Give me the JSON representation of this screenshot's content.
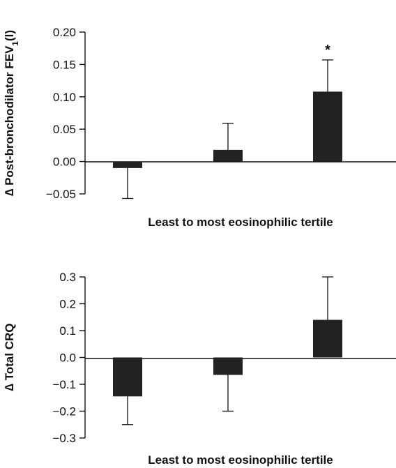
{
  "colors": {
    "bar": "#222222",
    "axis": "#111111"
  },
  "chart_data": [
    {
      "type": "bar",
      "categories": [
        "",
        "",
        ""
      ],
      "values": [
        -0.01,
        0.018,
        0.108
      ],
      "error_bars": [
        {
          "direction": "down",
          "to": -0.057
        },
        {
          "direction": "up",
          "to": 0.059
        },
        {
          "direction": "up",
          "to": 0.157
        }
      ],
      "annotations": [
        {
          "bar_index": 2,
          "text": "*"
        }
      ],
      "ylim": [
        -0.06,
        0.2
      ],
      "yticks": [
        0.2,
        0.15,
        0.1,
        0.05,
        0.0,
        -0.05
      ],
      "ytick_labels": [
        "0.20",
        "0.15",
        "0.10",
        "0.05",
        "0.00",
        "−0.05"
      ],
      "xlabel": "Least to most eosinophilic tertile",
      "ylabel_prefix": "∆ Post-bronchodilator FEV",
      "ylabel_sub": "1",
      "ylabel_suffix": "(l)",
      "grid": false
    },
    {
      "type": "bar",
      "categories": [
        "",
        "",
        ""
      ],
      "values": [
        -0.145,
        -0.065,
        0.14
      ],
      "error_bars": [
        {
          "direction": "down",
          "to": -0.25
        },
        {
          "direction": "down",
          "to": -0.2
        },
        {
          "direction": "up",
          "to": 0.3
        }
      ],
      "ylim": [
        -0.32,
        0.3
      ],
      "yticks": [
        0.3,
        0.2,
        0.1,
        0.0,
        -0.1,
        -0.2,
        -0.3
      ],
      "ytick_labels": [
        "0.3",
        "0.2",
        "0.1",
        "0.0",
        "−0.1",
        "−0.2",
        "−0.3"
      ],
      "xlabel": "Least to most eosinophilic tertile",
      "ylabel": "∆ Total CRQ",
      "grid": false
    }
  ]
}
